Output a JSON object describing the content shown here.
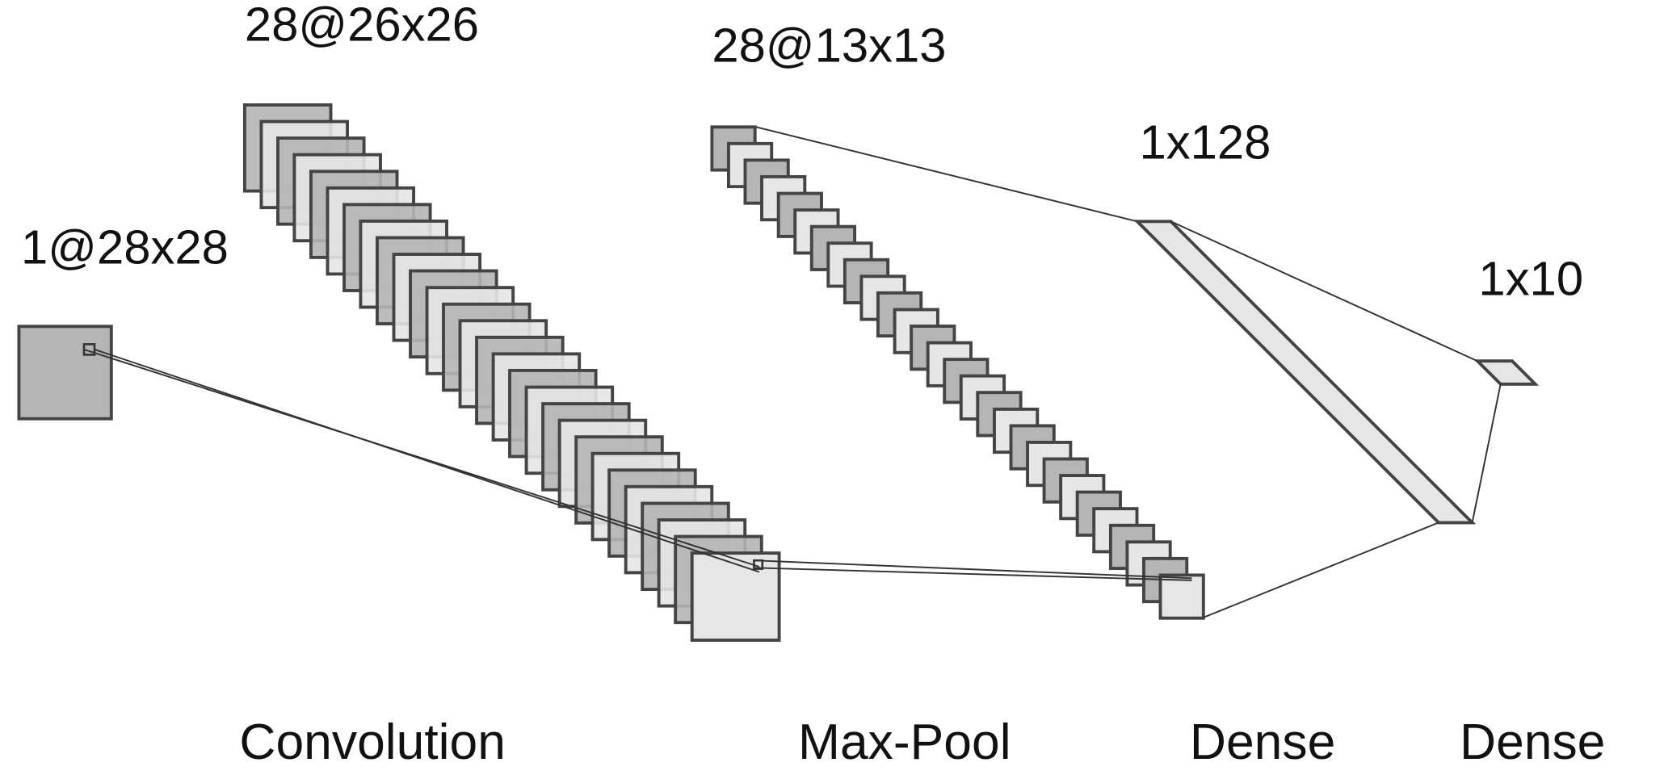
{
  "layers": {
    "input": {
      "shape_label": "1@28x28"
    },
    "conv": {
      "shape_label": "28@26x26",
      "operation_label": "Convolution"
    },
    "pool": {
      "shape_label": "28@13x13",
      "operation_label": "Max-Pool"
    },
    "dense1": {
      "shape_label": "1x128",
      "operation_label": "Dense"
    },
    "dense2": {
      "shape_label": "1x10",
      "operation_label": "Dense"
    }
  },
  "colors": {
    "dark_fill": "#b5b5b5",
    "light_fill": "#e6e6e6",
    "stroke": "#444444",
    "line": "#333333"
  }
}
